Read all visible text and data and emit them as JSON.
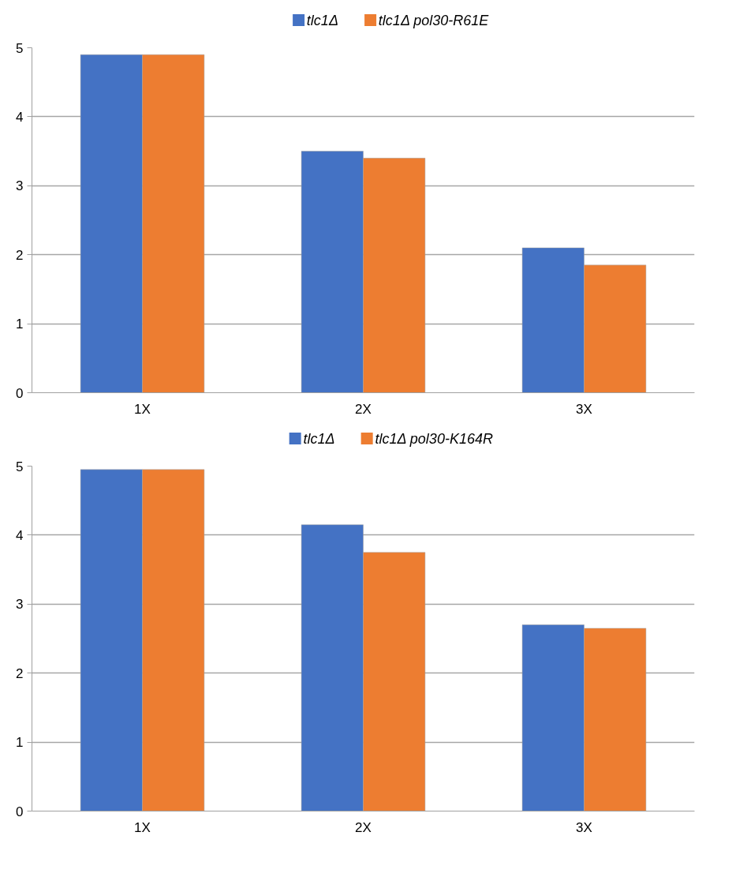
{
  "chart_data": [
    {
      "type": "bar",
      "categories": [
        "1X",
        "2X",
        "3X"
      ],
      "series": [
        {
          "name": "tlc1Δ",
          "color": "#4472c4",
          "values": [
            4.9,
            3.5,
            2.1
          ]
        },
        {
          "name": "tlc1Δ pol30-R61E",
          "color": "#ed7d31",
          "values": [
            4.9,
            3.4,
            1.85
          ]
        }
      ],
      "ylim": [
        0,
        5
      ],
      "yticks": [
        0,
        1,
        2,
        3,
        4,
        5
      ],
      "grid": "y",
      "legend": "top"
    },
    {
      "type": "bar",
      "categories": [
        "1X",
        "2X",
        "3X"
      ],
      "series": [
        {
          "name": "tlc1Δ",
          "color": "#4472c4",
          "values": [
            4.95,
            4.15,
            2.7
          ]
        },
        {
          "name": "tlc1Δ pol30-K164R",
          "color": "#ed7d31",
          "values": [
            4.95,
            3.75,
            2.65
          ]
        }
      ],
      "ylim": [
        0,
        5
      ],
      "yticks": [
        0,
        1,
        2,
        3,
        4,
        5
      ],
      "grid": "y",
      "legend": "top"
    }
  ]
}
